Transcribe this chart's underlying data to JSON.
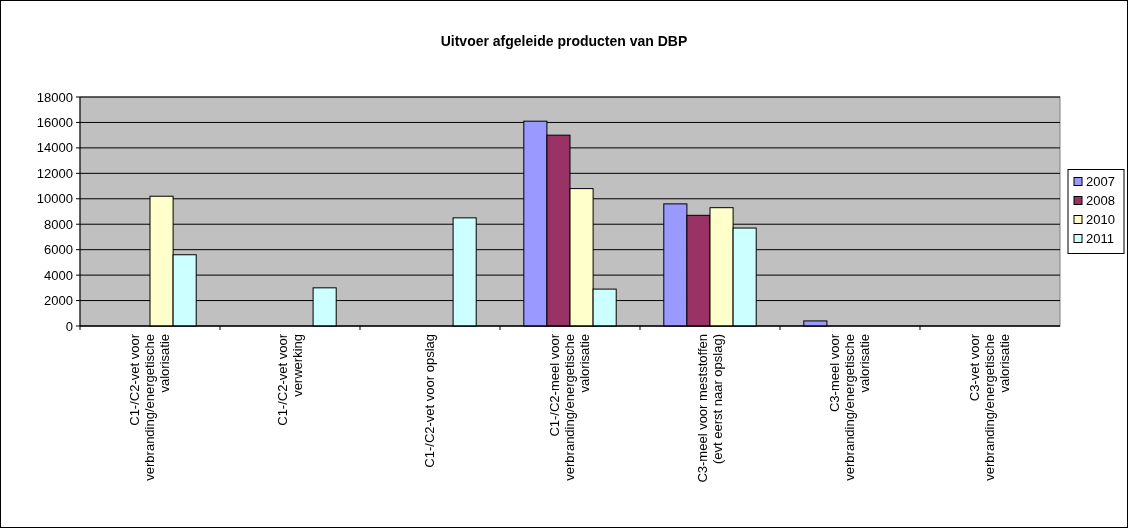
{
  "chart_data": {
    "type": "bar",
    "title": "Uitvoer afgeleide producten van DBP",
    "categories": [
      "C1-/C2-vet voor verbranding/energetische valorisatie",
      "C1-/C2-vet voor verwerking",
      "C1-/C2-vet voor opslag",
      "C1-/C2-meel voor verbranding/energetische valorisatie",
      "C3-meel voor meststoffen (evt eerst naar opslag)",
      "C3-meel voor verbranding/energetische valorisatie",
      "C3-vet voor verbranding/energetische valorisatie"
    ],
    "series": [
      {
        "name": "2007",
        "color": "#9999ff",
        "values": [
          null,
          null,
          null,
          16100,
          9600,
          400,
          null
        ]
      },
      {
        "name": "2008",
        "color": "#993366",
        "values": [
          null,
          null,
          null,
          15000,
          8700,
          null,
          null
        ]
      },
      {
        "name": "2010",
        "color": "#ffffcc",
        "values": [
          10200,
          null,
          null,
          10800,
          9300,
          null,
          null
        ]
      },
      {
        "name": "2011",
        "color": "#ccffff",
        "values": [
          5600,
          3000,
          8500,
          2900,
          7700,
          null,
          null
        ]
      }
    ],
    "ylim": [
      0,
      18000
    ],
    "yticks": [
      0,
      2000,
      4000,
      6000,
      8000,
      10000,
      12000,
      14000,
      16000,
      18000
    ],
    "grid": "y",
    "legend": "right"
  }
}
